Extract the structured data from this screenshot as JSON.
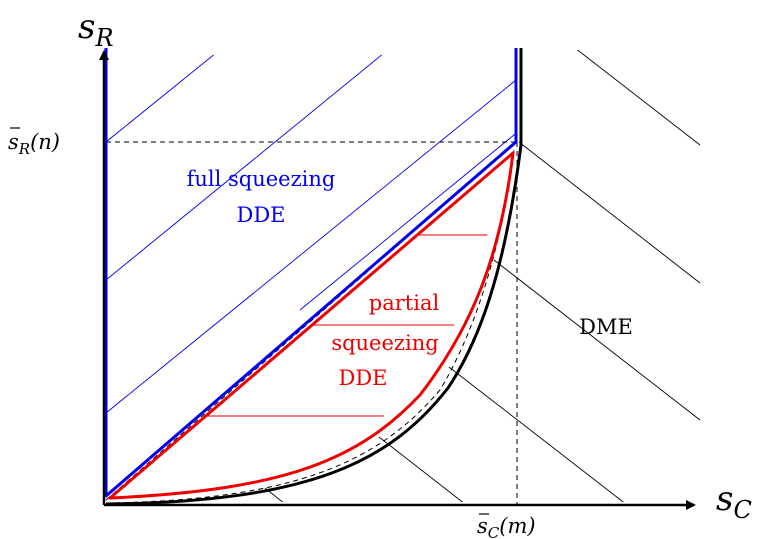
{
  "axes": {
    "x_label_base": "s",
    "x_label_sub": "C",
    "y_label_base": "s",
    "y_label_sub": "R"
  },
  "ticks": {
    "x_tick_base": "s",
    "x_tick_sub": "C",
    "x_tick_arg": "(m)",
    "y_tick_base": "s",
    "y_tick_sub": "R",
    "y_tick_arg": "(n)"
  },
  "regions": {
    "full_line1": "full squeezing",
    "full_line2": "DDE",
    "partial_line1": "partial",
    "partial_line2": "squeezing",
    "partial_line3": "DDE",
    "dme": "DME"
  },
  "colors": {
    "blue": "#0000ee",
    "red": "#ee0000",
    "black": "#000000"
  }
}
